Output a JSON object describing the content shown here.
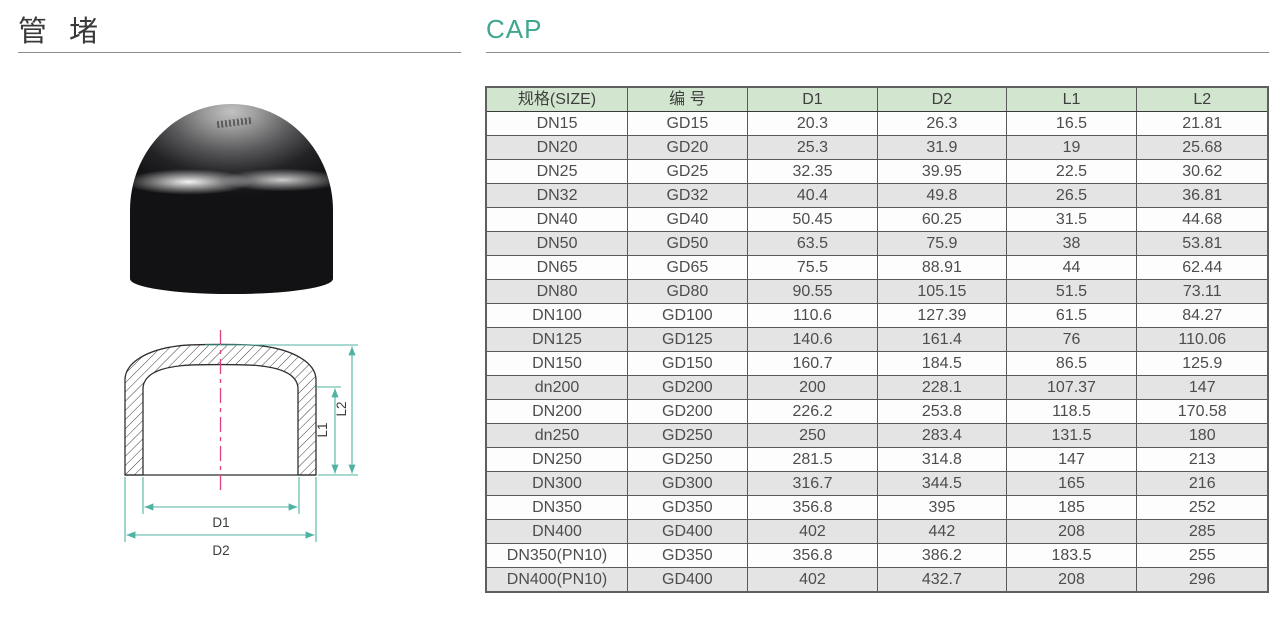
{
  "page": {
    "title_zh": "管 堵",
    "title_en": "CAP"
  },
  "colors": {
    "accent_teal": "#3fa78f",
    "table_header_bg": "#d2e6cf",
    "row_alt_bg": "#e4e4e4",
    "dimension_line": "#4fb3a3",
    "centerline_pink": "#e0407f"
  },
  "diagram": {
    "labels": {
      "d1": "D1",
      "d2": "D2",
      "l1": "L1",
      "l2": "L2"
    }
  },
  "table": {
    "columns": [
      "规格(SIZE)",
      "编 号",
      "D1",
      "D2",
      "L1",
      "L2"
    ],
    "rows": [
      [
        "DN15",
        "GD15",
        "20.3",
        "26.3",
        "16.5",
        "21.81"
      ],
      [
        "DN20",
        "GD20",
        "25.3",
        "31.9",
        "19",
        "25.68"
      ],
      [
        "DN25",
        "GD25",
        "32.35",
        "39.95",
        "22.5",
        "30.62"
      ],
      [
        "DN32",
        "GD32",
        "40.4",
        "49.8",
        "26.5",
        "36.81"
      ],
      [
        "DN40",
        "GD40",
        "50.45",
        "60.25",
        "31.5",
        "44.68"
      ],
      [
        "DN50",
        "GD50",
        "63.5",
        "75.9",
        "38",
        "53.81"
      ],
      [
        "DN65",
        "GD65",
        "75.5",
        "88.91",
        "44",
        "62.44"
      ],
      [
        "DN80",
        "GD80",
        "90.55",
        "105.15",
        "51.5",
        "73.11"
      ],
      [
        "DN100",
        "GD100",
        "110.6",
        "127.39",
        "61.5",
        "84.27"
      ],
      [
        "DN125",
        "GD125",
        "140.6",
        "161.4",
        "76",
        "110.06"
      ],
      [
        "DN150",
        "GD150",
        "160.7",
        "184.5",
        "86.5",
        "125.9"
      ],
      [
        "dn200",
        "GD200",
        "200",
        "228.1",
        "107.37",
        "147"
      ],
      [
        "DN200",
        "GD200",
        "226.2",
        "253.8",
        "118.5",
        "170.58"
      ],
      [
        "dn250",
        "GD250",
        "250",
        "283.4",
        "131.5",
        "180"
      ],
      [
        "DN250",
        "GD250",
        "281.5",
        "314.8",
        "147",
        "213"
      ],
      [
        "DN300",
        "GD300",
        "316.7",
        "344.5",
        "165",
        "216"
      ],
      [
        "DN350",
        "GD350",
        "356.8",
        "395",
        "185",
        "252"
      ],
      [
        "DN400",
        "GD400",
        "402",
        "442",
        "208",
        "285"
      ],
      [
        "DN350(PN10)",
        "GD350",
        "356.8",
        "386.2",
        "183.5",
        "255"
      ],
      [
        "DN400(PN10)",
        "GD400",
        "402",
        "432.7",
        "208",
        "296"
      ]
    ]
  }
}
